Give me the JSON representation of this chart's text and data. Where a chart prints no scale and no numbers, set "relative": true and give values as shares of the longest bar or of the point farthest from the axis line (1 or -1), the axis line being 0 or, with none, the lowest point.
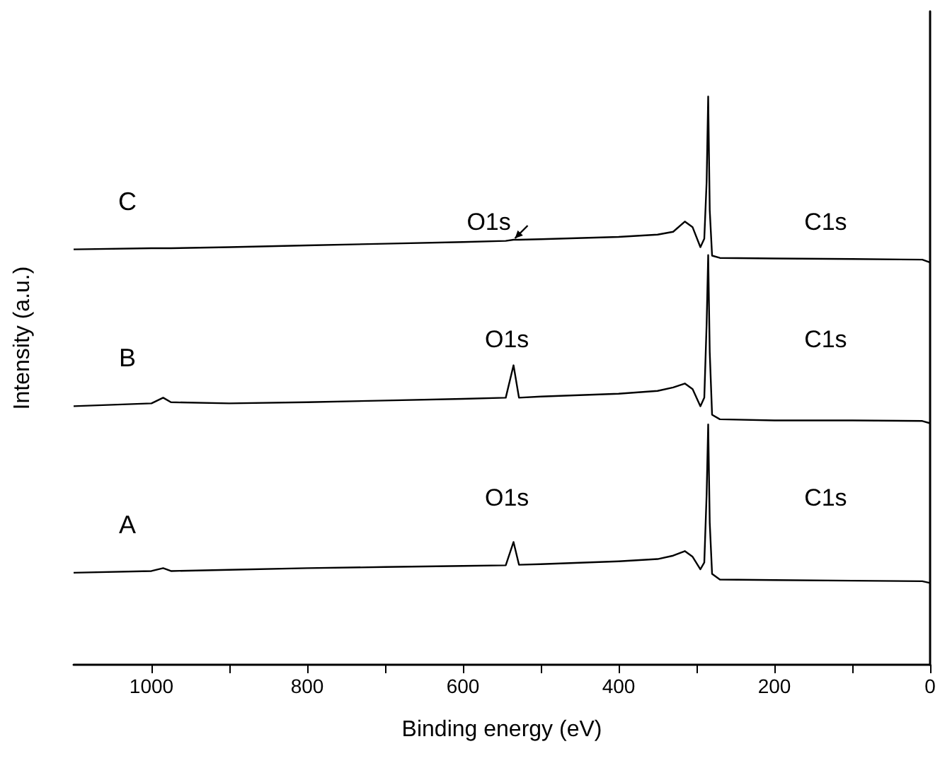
{
  "chart_data": {
    "type": "line",
    "relative": true,
    "xlabel": "Binding energy (eV)",
    "ylabel": "Intensity (a.u.)",
    "xlim": [
      1100,
      0
    ],
    "xticks": [
      0,
      {
        "value": 100,
        "label": null
      },
      200,
      {
        "value": 300,
        "label": null
      },
      400,
      {
        "value": 500,
        "label": null
      },
      600,
      {
        "value": 700,
        "label": null
      },
      800,
      {
        "value": 900,
        "label": null
      },
      1000
    ],
    "x": [
      1100,
      1000,
      985,
      975,
      900,
      800,
      700,
      600,
      545,
      535,
      528,
      500,
      400,
      350,
      330,
      315,
      305,
      295,
      290,
      287,
      285,
      283,
      280,
      270,
      200,
      100,
      10,
      0
    ],
    "series": [
      {
        "name": "A",
        "color": "#000000",
        "values": [
          0.162,
          0.165,
          0.17,
          0.165,
          0.167,
          0.17,
          0.172,
          0.174,
          0.175,
          0.216,
          0.176,
          0.177,
          0.182,
          0.186,
          0.192,
          0.2,
          0.19,
          0.168,
          0.18,
          0.3,
          0.423,
          0.25,
          0.16,
          0.15,
          0.149,
          0.148,
          0.147,
          0.144
        ]
      },
      {
        "name": "B",
        "color": "#000000",
        "values": [
          0.455,
          0.46,
          0.47,
          0.462,
          0.46,
          0.462,
          0.465,
          0.468,
          0.47,
          0.527,
          0.47,
          0.472,
          0.477,
          0.482,
          0.488,
          0.495,
          0.485,
          0.455,
          0.47,
          0.6,
          0.721,
          0.55,
          0.44,
          0.432,
          0.43,
          0.43,
          0.429,
          0.425
        ]
      },
      {
        "name": "C",
        "color": "#000000",
        "values": [
          0.731,
          0.733,
          0.733,
          0.733,
          0.735,
          0.738,
          0.741,
          0.744,
          0.746,
          0.748,
          0.748,
          0.749,
          0.753,
          0.757,
          0.762,
          0.78,
          0.77,
          0.735,
          0.75,
          0.85,
          1.0,
          0.8,
          0.72,
          0.716,
          0.715,
          0.714,
          0.713,
          0.708
        ]
      }
    ],
    "annotations": [
      "O1s",
      "O1s",
      "O1s",
      "C1s",
      "C1s",
      "C1s"
    ],
    "grid": false,
    "marker": "none",
    "line_style": "solid"
  }
}
